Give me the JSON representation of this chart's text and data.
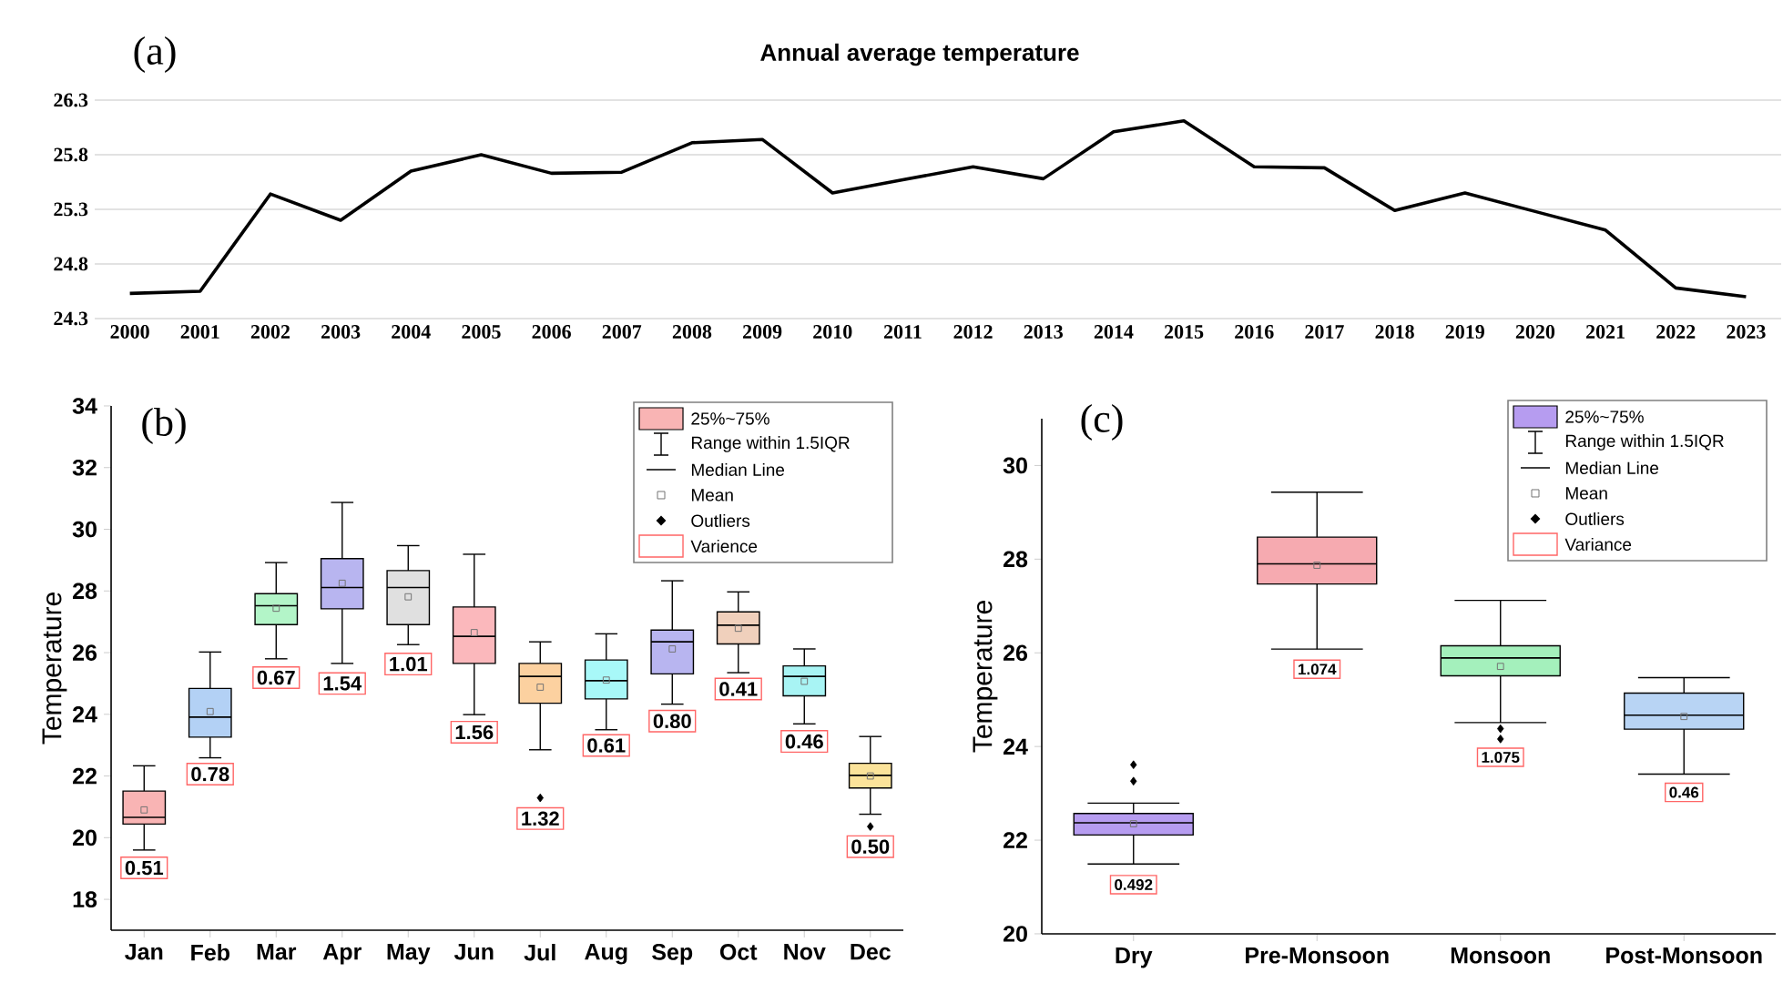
{
  "chart_data": [
    {
      "type": "line",
      "title": "Annual average temperature",
      "annotations": [
        "(a)"
      ],
      "categories": [
        "2000",
        "2001",
        "2002",
        "2003",
        "2004",
        "2005",
        "2006",
        "2007",
        "2008",
        "2009",
        "2010",
        "2011",
        "2012",
        "2013",
        "2014",
        "2015",
        "2016",
        "2017",
        "2018",
        "2019",
        "2020",
        "2021",
        "2022",
        "2023"
      ],
      "values": [
        24.53,
        24.55,
        25.44,
        25.2,
        25.65,
        25.8,
        25.63,
        25.64,
        25.91,
        25.94,
        25.45,
        25.57,
        25.69,
        25.58,
        26.01,
        26.11,
        25.69,
        25.68,
        25.29,
        25.45,
        25.28,
        25.11,
        24.58,
        24.5
      ],
      "color": "#000000",
      "ylim": [
        24.3,
        26.3
      ],
      "yticks": [
        24.3,
        24.8,
        25.3,
        25.8,
        26.3
      ],
      "grid": "y"
    },
    {
      "type": "box",
      "ylabel": "Temperature",
      "annotations": [
        "(b)",
        "25%~75%",
        "Range within 1.5IQR",
        "Median Line",
        "Mean",
        "Outliers",
        "Varience",
        {
          "text": "0.51",
          "x": "Jan",
          "y": 19.02
        },
        {
          "text": "0.78",
          "x": "Feb",
          "y": 22.06
        },
        {
          "text": "0.67",
          "x": "Mar",
          "y": 25.19
        },
        {
          "text": "1.54",
          "x": "Apr",
          "y": 25.0
        },
        {
          "text": "1.01",
          "x": "May",
          "y": 25.63
        },
        {
          "text": "1.56",
          "x": "Jun",
          "y": 23.42
        },
        {
          "text": "1.32",
          "x": "Jul",
          "y": 20.62
        },
        {
          "text": "0.61",
          "x": "Aug",
          "y": 22.99
        },
        {
          "text": "0.80",
          "x": "Sep",
          "y": 23.78
        },
        {
          "text": "0.41",
          "x": "Oct",
          "y": 24.82
        },
        {
          "text": "0.46",
          "x": "Nov",
          "y": 23.12
        },
        {
          "text": "0.50",
          "x": "Dec",
          "y": 19.71
        }
      ],
      "categories": [
        "Jan",
        "Feb",
        "Mar",
        "Apr",
        "May",
        "Jun",
        "Jul",
        "Aug",
        "Sep",
        "Oct",
        "Nov",
        "Dec"
      ],
      "boxes": [
        {
          "low": 19.6,
          "q1": 20.44,
          "median": 20.66,
          "q3": 21.51,
          "high": 22.33,
          "mean": 20.9
        },
        {
          "low": 22.59,
          "q1": 23.26,
          "median": 23.91,
          "q3": 24.84,
          "high": 26.02,
          "mean": 24.09
        },
        {
          "low": 25.8,
          "q1": 26.91,
          "median": 27.52,
          "q3": 27.91,
          "high": 28.92,
          "mean": 27.44
        },
        {
          "low": 25.65,
          "q1": 27.42,
          "median": 28.11,
          "q3": 29.05,
          "high": 30.87,
          "mean": 28.25
        },
        {
          "low": 26.26,
          "q1": 26.91,
          "median": 28.11,
          "q3": 28.66,
          "high": 29.47,
          "mean": 27.81
        },
        {
          "low": 23.99,
          "q1": 25.65,
          "median": 26.53,
          "q3": 27.48,
          "high": 29.19,
          "mean": 26.65
        },
        {
          "low": 22.85,
          "q1": 24.36,
          "median": 25.23,
          "q3": 25.65,
          "high": 26.35,
          "mean": 24.88,
          "outliers": [
            21.29
          ]
        },
        {
          "low": 23.5,
          "q1": 24.5,
          "median": 25.09,
          "q3": 25.76,
          "high": 26.61,
          "mean": 25.11
        },
        {
          "low": 24.33,
          "q1": 25.31,
          "median": 26.35,
          "q3": 26.73,
          "high": 28.33,
          "mean": 26.12
        },
        {
          "low": 25.35,
          "q1": 26.28,
          "median": 26.89,
          "q3": 27.32,
          "high": 27.97,
          "mean": 26.79
        },
        {
          "low": 23.69,
          "q1": 24.6,
          "median": 25.23,
          "q3": 25.57,
          "high": 26.12,
          "mean": 25.07
        },
        {
          "low": 20.76,
          "q1": 21.61,
          "median": 22.02,
          "q3": 22.41,
          "high": 23.28,
          "mean": 22.0,
          "outliers": [
            20.36
          ]
        }
      ],
      "colors": [
        "#f9b4b4",
        "#b3d1f5",
        "#b3f5c8",
        "#b8b5f0",
        "#e0e0e0",
        "#fbb8bc",
        "#fcd1a0",
        "#a8f8f8",
        "#b8b5f0",
        "#f0d0bc",
        "#a8f4f4",
        "#fbe39a"
      ],
      "ylim": [
        17,
        34
      ],
      "yticks": [
        18,
        20,
        22,
        24,
        26,
        28,
        30,
        32,
        34
      ]
    },
    {
      "type": "box",
      "ylabel": "Temperature",
      "annotations": [
        "(c)",
        "25%~75%",
        "Range within 1.5IQR",
        "Median Line",
        "Mean",
        "Outliers",
        "Variance",
        {
          "text": "0.492",
          "x": "Dry",
          "y": 21.05
        },
        {
          "text": "1.074",
          "x": "Pre-Monsoon",
          "y": 25.65
        },
        {
          "text": "1.075",
          "x": "Monsoon",
          "y": 23.77
        },
        {
          "text": "0.46",
          "x": "Post-Monsoon",
          "y": 23.02
        }
      ],
      "categories": [
        "Dry",
        "Pre-Monsoon",
        "Monsoon",
        "Post-Monsoon"
      ],
      "boxes": [
        {
          "low": 21.49,
          "q1": 22.11,
          "median": 22.37,
          "q3": 22.57,
          "high": 22.79,
          "mean": 22.35,
          "outliers": [
            23.61,
            23.26
          ]
        },
        {
          "low": 26.08,
          "q1": 27.47,
          "median": 27.9,
          "q3": 28.47,
          "high": 29.43,
          "mean": 27.87
        },
        {
          "low": 24.51,
          "q1": 25.51,
          "median": 25.89,
          "q3": 26.15,
          "high": 27.12,
          "mean": 25.71,
          "outliers": [
            24.38,
            24.16
          ]
        },
        {
          "low": 23.41,
          "q1": 24.37,
          "median": 24.67,
          "q3": 25.14,
          "high": 25.47,
          "mean": 24.64
        }
      ],
      "colors": [
        "#b69cf0",
        "#f6aab0",
        "#a4f0bc",
        "#b8d4f4"
      ],
      "ylim": [
        20,
        31
      ],
      "yticks": [
        20,
        22,
        24,
        26,
        28,
        30
      ]
    }
  ]
}
